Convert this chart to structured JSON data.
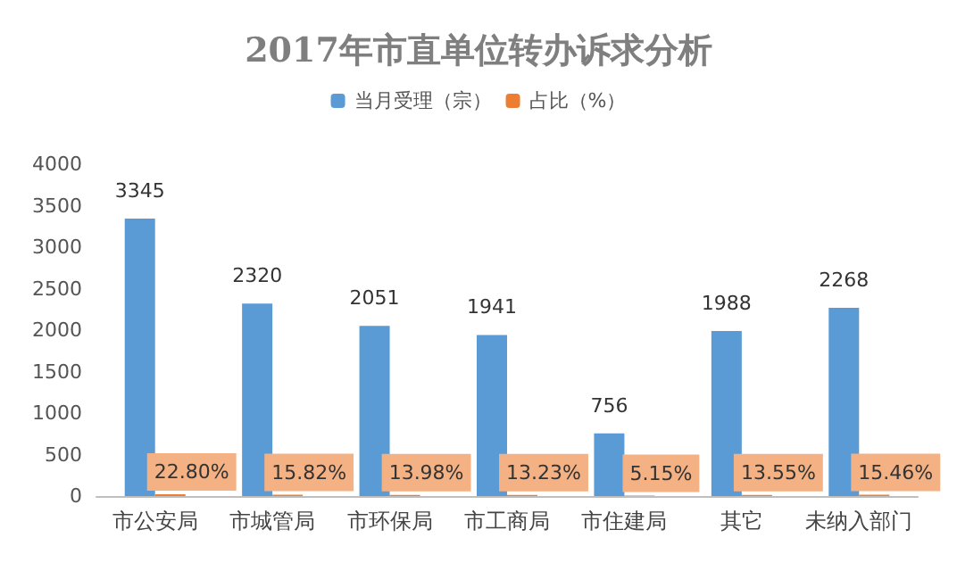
{
  "chart_data": {
    "type": "bar",
    "title": "2017年市直单位转办诉求分析",
    "categories": [
      "市公安局",
      "市城管局",
      "市环保局",
      "市工商局",
      "市住建局",
      "其它",
      "未纳入部门"
    ],
    "series": [
      {
        "name": "当月受理（宗）",
        "color": "#5b9bd5",
        "values": [
          3345,
          2320,
          2051,
          1941,
          756,
          1988,
          2268
        ],
        "value_labels": [
          "3345",
          "2320",
          "2051",
          "1941",
          "756",
          "1988",
          "2268"
        ]
      },
      {
        "name": "占比（%）",
        "color": "#ed7d31",
        "values": [
          22.8,
          15.82,
          13.98,
          13.23,
          5.15,
          13.55,
          15.46
        ],
        "value_labels": [
          "22.80%",
          "15.82%",
          "13.98%",
          "13.23%",
          "5.15%",
          "13.55%",
          "15.46%"
        ]
      }
    ],
    "ylim": [
      0,
      4000
    ],
    "yticks": [
      0,
      500,
      1000,
      1500,
      2000,
      2500,
      3000,
      3500,
      4000
    ],
    "grid": false,
    "legend": "top"
  }
}
